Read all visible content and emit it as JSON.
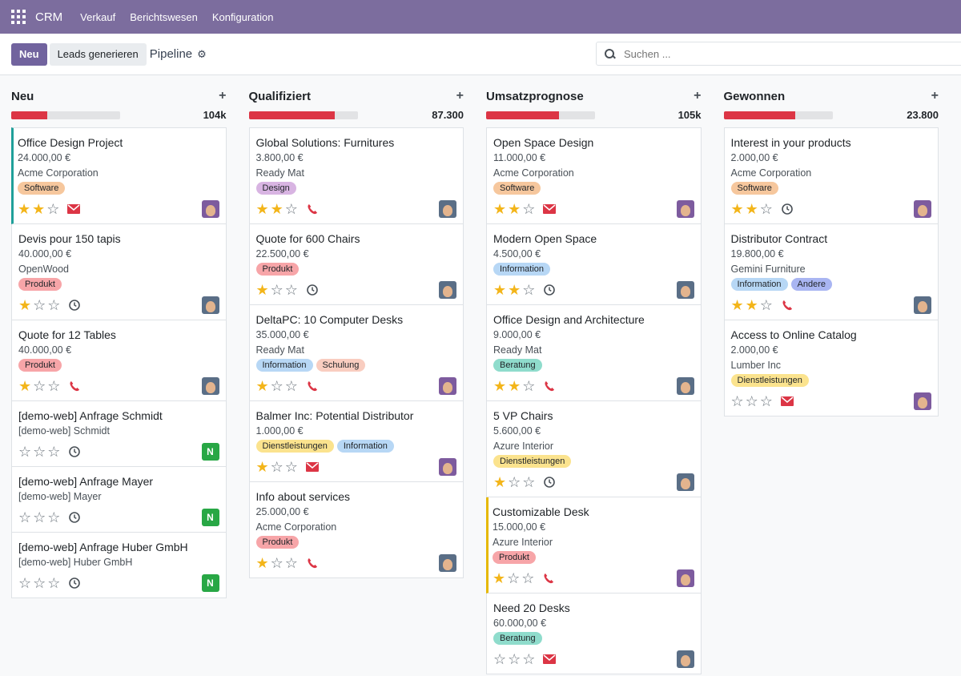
{
  "navbar": {
    "brand": "CRM",
    "menus": [
      "Verkauf",
      "Berichtswesen",
      "Konfiguration"
    ]
  },
  "control": {
    "new_label": "Neu",
    "generate_label": "Leads generieren",
    "breadcrumb": "Pipeline",
    "search_placeholder": "Suchen ..."
  },
  "colors": {
    "navbar": "#7c6d9e",
    "primary_button": "#71639e",
    "progress_red": "#dc3545",
    "star": "#f3b51a"
  },
  "columns": [
    {
      "title": "Neu",
      "total": "104k",
      "progress": 0.33,
      "cards": [
        {
          "title": "Office Design Project",
          "lines": [
            "24.000,00 €",
            "Acme Corporation"
          ],
          "tags": [
            {
              "label": "Software",
              "color": "#f6c79d"
            }
          ],
          "stars": 2,
          "activity": "envelope-icon",
          "avatar": "photo-a",
          "border": "left-teal"
        },
        {
          "title": "Devis pour 150 tapis",
          "lines": [
            "40.000,00 €",
            "OpenWood"
          ],
          "tags": [
            {
              "label": "Produkt",
              "color": "#f7a5a8"
            }
          ],
          "stars": 1,
          "activity": "clock-icon",
          "avatar": "photo-b",
          "border": ""
        },
        {
          "title": "Quote for 12 Tables",
          "lines": [
            "40.000,00 €"
          ],
          "tags": [
            {
              "label": "Produkt",
              "color": "#f7a5a8"
            }
          ],
          "stars": 1,
          "activity": "phone-icon",
          "avatar": "photo-b",
          "border": ""
        },
        {
          "title": "[demo-web] Anfrage Schmidt",
          "lines": [
            "[demo-web] Schmidt"
          ],
          "tags": [],
          "stars": 0,
          "activity": "clock-icon",
          "avatar": "N",
          "border": ""
        },
        {
          "title": "[demo-web] Anfrage Mayer",
          "lines": [
            "[demo-web] Mayer"
          ],
          "tags": [],
          "stars": 0,
          "activity": "clock-icon",
          "avatar": "N",
          "border": ""
        },
        {
          "title": "[demo-web] Anfrage Huber GmbH",
          "lines": [
            "[demo-web] Huber GmbH"
          ],
          "tags": [],
          "stars": 0,
          "activity": "clock-icon",
          "avatar": "N",
          "border": ""
        }
      ]
    },
    {
      "title": "Qualifiziert",
      "total": "87.300",
      "progress": 0.79,
      "cards": [
        {
          "title": "Global Solutions: Furnitures",
          "lines": [
            "3.800,00 €",
            "Ready Mat"
          ],
          "tags": [
            {
              "label": "Design",
              "color": "#d8b4e2"
            }
          ],
          "stars": 2,
          "activity": "phone-icon",
          "avatar": "photo-b",
          "border": ""
        },
        {
          "title": "Quote for 600 Chairs",
          "lines": [
            "22.500,00 €"
          ],
          "tags": [
            {
              "label": "Produkt",
              "color": "#f7a5a8"
            }
          ],
          "stars": 1,
          "activity": "clock-icon",
          "avatar": "photo-b",
          "border": ""
        },
        {
          "title": "DeltaPC: 10 Computer Desks",
          "lines": [
            "35.000,00 €",
            "Ready Mat"
          ],
          "tags": [
            {
              "label": "Information",
              "color": "#b7d7f5"
            },
            {
              "label": "Schulung",
              "color": "#f9cdc0"
            }
          ],
          "stars": 1,
          "activity": "phone-icon",
          "avatar": "photo-a",
          "border": ""
        },
        {
          "title": "Balmer Inc: Potential Distributor",
          "lines": [
            "1.000,00 €"
          ],
          "tags": [
            {
              "label": "Dienstleistungen",
              "color": "#fbe38e"
            },
            {
              "label": "Information",
              "color": "#b7d7f5"
            }
          ],
          "stars": 1,
          "activity": "envelope-icon",
          "avatar": "photo-a",
          "border": ""
        },
        {
          "title": "Info about services",
          "lines": [
            "25.000,00 €",
            "Acme Corporation"
          ],
          "tags": [
            {
              "label": "Produkt",
              "color": "#f7a5a8"
            }
          ],
          "stars": 1,
          "activity": "phone-icon",
          "avatar": "photo-b",
          "border": ""
        }
      ]
    },
    {
      "title": "Umsatzprognose",
      "total": "105k",
      "progress": 0.67,
      "cards": [
        {
          "title": "Open Space Design",
          "lines": [
            "11.000,00 €",
            "Acme Corporation"
          ],
          "tags": [
            {
              "label": "Software",
              "color": "#f6c79d"
            }
          ],
          "stars": 2,
          "activity": "envelope-icon",
          "avatar": "photo-a",
          "border": ""
        },
        {
          "title": "Modern Open Space",
          "lines": [
            "4.500,00 €"
          ],
          "tags": [
            {
              "label": "Information",
              "color": "#b7d7f5"
            }
          ],
          "stars": 2,
          "activity": "clock-icon",
          "avatar": "photo-b",
          "border": ""
        },
        {
          "title": "Office Design and Architecture",
          "lines": [
            "9.000,00 €",
            "Ready Mat"
          ],
          "tags": [
            {
              "label": "Beratung",
              "color": "#8fdccc"
            }
          ],
          "stars": 2,
          "activity": "phone-icon",
          "avatar": "photo-b",
          "border": ""
        },
        {
          "title": "5 VP Chairs",
          "lines": [
            "5.600,00 €",
            "Azure Interior"
          ],
          "tags": [
            {
              "label": "Dienstleistungen",
              "color": "#fbe38e"
            }
          ],
          "stars": 1,
          "activity": "clock-icon",
          "avatar": "photo-b",
          "border": ""
        },
        {
          "title": "Customizable Desk",
          "lines": [
            "15.000,00 €",
            "Azure Interior"
          ],
          "tags": [
            {
              "label": "Produkt",
              "color": "#f7a5a8"
            }
          ],
          "stars": 1,
          "activity": "phone-icon",
          "avatar": "photo-a",
          "border": "left-yellow"
        },
        {
          "title": "Need 20 Desks",
          "lines": [
            "60.000,00 €"
          ],
          "tags": [
            {
              "label": "Beratung",
              "color": "#8fdccc"
            }
          ],
          "stars": 0,
          "activity": "envelope-icon",
          "avatar": "photo-b",
          "border": ""
        }
      ]
    },
    {
      "title": "Gewonnen",
      "total": "23.800",
      "progress": 0.66,
      "cards": [
        {
          "title": "Interest in your products",
          "lines": [
            "2.000,00 €",
            "Acme Corporation"
          ],
          "tags": [
            {
              "label": "Software",
              "color": "#f6c79d"
            }
          ],
          "stars": 2,
          "activity": "clock-icon",
          "avatar": "photo-a",
          "border": ""
        },
        {
          "title": "Distributor Contract",
          "lines": [
            "19.800,00 €",
            "Gemini Furniture"
          ],
          "tags": [
            {
              "label": "Information",
              "color": "#b7d7f5"
            },
            {
              "label": "Andere",
              "color": "#a9b5f2"
            }
          ],
          "stars": 2,
          "activity": "phone-icon",
          "avatar": "photo-b",
          "border": ""
        },
        {
          "title": "Access to Online Catalog",
          "lines": [
            "2.000,00 €",
            "Lumber Inc"
          ],
          "tags": [
            {
              "label": "Dienstleistungen",
              "color": "#fbe38e"
            }
          ],
          "stars": 0,
          "activity": "envelope-icon",
          "avatar": "photo-a",
          "border": ""
        }
      ]
    }
  ]
}
